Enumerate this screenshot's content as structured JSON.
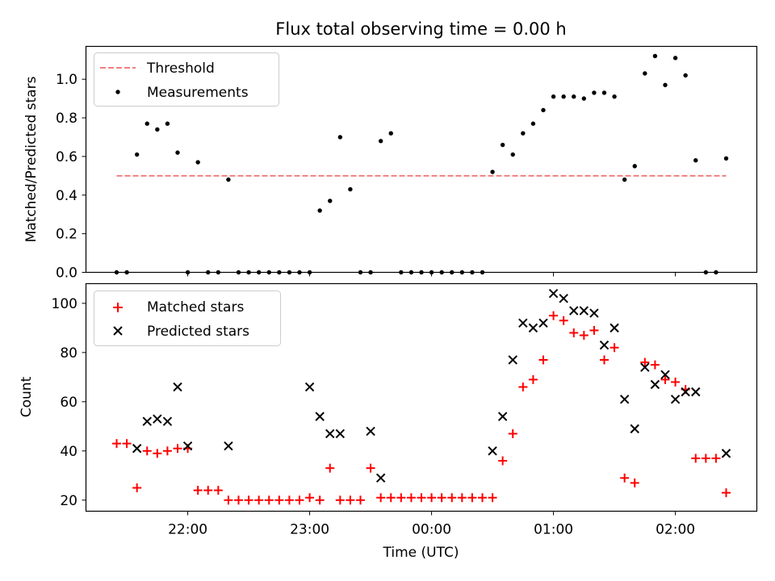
{
  "figure": {
    "title": "Flux total observing time = 0.00 h"
  },
  "chart_data": [
    {
      "type": "scatter",
      "ylabel": "Matched/Predicted stars",
      "ylim": [
        0,
        1.17
      ],
      "yticks": [
        0.0,
        0.2,
        0.4,
        0.6,
        0.8,
        1.0
      ],
      "ytick_labels": [
        "0.0",
        "0.2",
        "0.4",
        "0.6",
        "0.8",
        "1.0"
      ],
      "legend": {
        "placement": "top-left",
        "items": [
          {
            "label": "Threshold",
            "kind": "dashed-line",
            "color": "#f08080"
          },
          {
            "label": "Measurements",
            "kind": "dot",
            "color": "#000000"
          }
        ]
      },
      "series": [
        {
          "name": "Threshold",
          "kind": "dashed-line",
          "color": "#f08080",
          "x": [
            "21:25",
            "23:05",
            "00:45",
            "02:25"
          ],
          "y": [
            0.5,
            0.5,
            0.5,
            0.5
          ]
        },
        {
          "name": "Measurements",
          "kind": "dot",
          "color": "#000000",
          "x": [
            "21:25",
            "21:30",
            "21:35",
            "21:40",
            "21:45",
            "21:50",
            "21:55",
            "22:00",
            "22:05",
            "22:10",
            "22:15",
            "22:20",
            "22:25",
            "22:30",
            "22:35",
            "22:40",
            "22:45",
            "22:50",
            "22:55",
            "23:00",
            "23:05",
            "23:10",
            "23:15",
            "23:20",
            "23:25",
            "23:30",
            "23:35",
            "23:40",
            "23:45",
            "23:50",
            "23:55",
            "00:00",
            "00:05",
            "00:10",
            "00:15",
            "00:20",
            "00:25",
            "00:30",
            "00:35",
            "00:40",
            "00:45",
            "00:50",
            "00:55",
            "01:00",
            "01:05",
            "01:10",
            "01:15",
            "01:20",
            "01:25",
            "01:30",
            "01:35",
            "01:40",
            "01:45",
            "01:50",
            "01:55",
            "02:00",
            "02:05",
            "02:10",
            "02:15",
            "02:20",
            "02:25"
          ],
          "y": [
            0,
            0,
            0.61,
            0.77,
            0.74,
            0.77,
            0.62,
            0,
            0.57,
            0,
            0,
            0.48,
            0,
            0,
            0,
            0,
            0,
            0,
            0,
            0,
            0.32,
            0.37,
            0.7,
            0.43,
            0,
            0,
            0.68,
            0.72,
            0,
            0,
            0,
            0,
            0,
            0,
            0,
            0,
            0,
            0.52,
            0.66,
            0.61,
            0.72,
            0.77,
            0.84,
            0.91,
            0.91,
            0.91,
            0.9,
            0.93,
            0.93,
            0.91,
            0.48,
            0.55,
            1.03,
            1.12,
            0.97,
            1.11,
            1.02,
            0.58,
            0,
            0,
            0.59
          ]
        }
      ]
    },
    {
      "type": "scatter",
      "xlabel": "Time (UTC)",
      "ylabel": "Count",
      "ylim": [
        15.5,
        108
      ],
      "yticks": [
        20,
        40,
        60,
        80,
        100
      ],
      "ytick_labels": [
        "20",
        "40",
        "60",
        "80",
        "100"
      ],
      "xticks": [
        "22:00",
        "23:00",
        "00:00",
        "01:00",
        "02:00"
      ],
      "xtick_labels": [
        "22:00",
        "23:00",
        "00:00",
        "01:00",
        "02:00"
      ],
      "legend": {
        "placement": "top-left",
        "items": [
          {
            "label": "Matched stars",
            "kind": "plus",
            "color": "#ff0000"
          },
          {
            "label": "Predicted stars",
            "kind": "cross",
            "color": "#000000"
          }
        ]
      },
      "series": [
        {
          "name": "Matched stars",
          "kind": "plus",
          "color": "#ff0000",
          "x": [
            "21:25",
            "21:30",
            "21:35",
            "21:40",
            "21:45",
            "21:50",
            "21:55",
            "22:00",
            "22:05",
            "22:10",
            "22:15",
            "22:20",
            "22:25",
            "22:30",
            "22:35",
            "22:40",
            "22:45",
            "22:50",
            "22:55",
            "23:00",
            "23:05",
            "23:10",
            "23:15",
            "23:20",
            "23:25",
            "23:30",
            "23:35",
            "23:40",
            "23:45",
            "23:50",
            "23:55",
            "00:00",
            "00:05",
            "00:10",
            "00:15",
            "00:20",
            "00:25",
            "00:30",
            "00:35",
            "00:40",
            "00:45",
            "00:50",
            "00:55",
            "01:00",
            "01:05",
            "01:10",
            "01:15",
            "01:20",
            "01:25",
            "01:30",
            "01:35",
            "01:40",
            "01:45",
            "01:50",
            "01:55",
            "02:00",
            "02:05",
            "02:10",
            "02:15",
            "02:20",
            "02:25"
          ],
          "y": [
            43,
            43,
            25,
            40,
            39,
            40,
            41,
            41,
            24,
            24,
            24,
            20,
            20,
            20,
            20,
            20,
            20,
            20,
            20,
            21,
            20,
            33,
            20,
            20,
            20,
            33,
            21,
            21,
            21,
            21,
            21,
            21,
            21,
            21,
            21,
            21,
            21,
            21,
            36,
            47,
            66,
            69,
            77,
            95,
            93,
            88,
            87,
            89,
            77,
            82,
            29,
            27,
            76,
            75,
            69,
            68,
            65,
            37,
            37,
            37,
            23
          ]
        },
        {
          "name": "Predicted stars",
          "kind": "cross",
          "color": "#000000",
          "x": [
            "21:35",
            "21:40",
            "21:45",
            "21:50",
            "21:55",
            "22:00",
            "22:20",
            "23:00",
            "23:05",
            "23:10",
            "23:15",
            "23:30",
            "23:35",
            "00:30",
            "00:35",
            "00:40",
            "00:45",
            "00:50",
            "00:55",
            "01:00",
            "01:05",
            "01:10",
            "01:15",
            "01:20",
            "01:25",
            "01:30",
            "01:35",
            "01:40",
            "01:45",
            "01:50",
            "01:55",
            "02:00",
            "02:05",
            "02:10",
            "02:25"
          ],
          "y": [
            41,
            52,
            53,
            52,
            66,
            42,
            42,
            66,
            54,
            47,
            47,
            48,
            29,
            40,
            54,
            77,
            92,
            90,
            92,
            104,
            102,
            97,
            97,
            96,
            83,
            90,
            61,
            49,
            74,
            67,
            71,
            61,
            64,
            64,
            39
          ]
        }
      ]
    }
  ]
}
